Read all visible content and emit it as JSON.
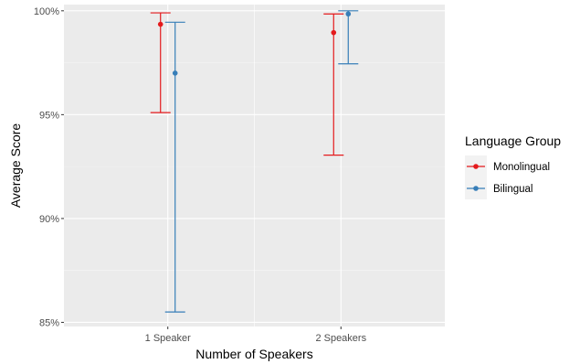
{
  "chart_data": {
    "type": "scatter",
    "title": "",
    "xlabel": "Number of Speakers",
    "ylabel": "Average Score",
    "categories": [
      "1 Speaker",
      "2 Speakers"
    ],
    "ylim": [
      84.8,
      100.3
    ],
    "yticks": [
      85,
      90,
      95,
      100
    ],
    "ytick_labels": [
      "85%",
      "90%",
      "95%",
      "100%"
    ],
    "grid": true,
    "legend": {
      "title": "Language Group",
      "position": "right"
    },
    "series": [
      {
        "name": "Monolingual",
        "color": "#e41a1c",
        "mean": [
          99.35,
          98.95
        ],
        "lower": [
          95.1,
          93.05
        ],
        "upper": [
          99.9,
          99.85
        ]
      },
      {
        "name": "Bilingual",
        "color": "#377eb8",
        "mean": [
          97.0,
          99.85
        ],
        "lower": [
          85.5,
          97.45
        ],
        "upper": [
          99.45,
          100.0
        ]
      }
    ]
  }
}
